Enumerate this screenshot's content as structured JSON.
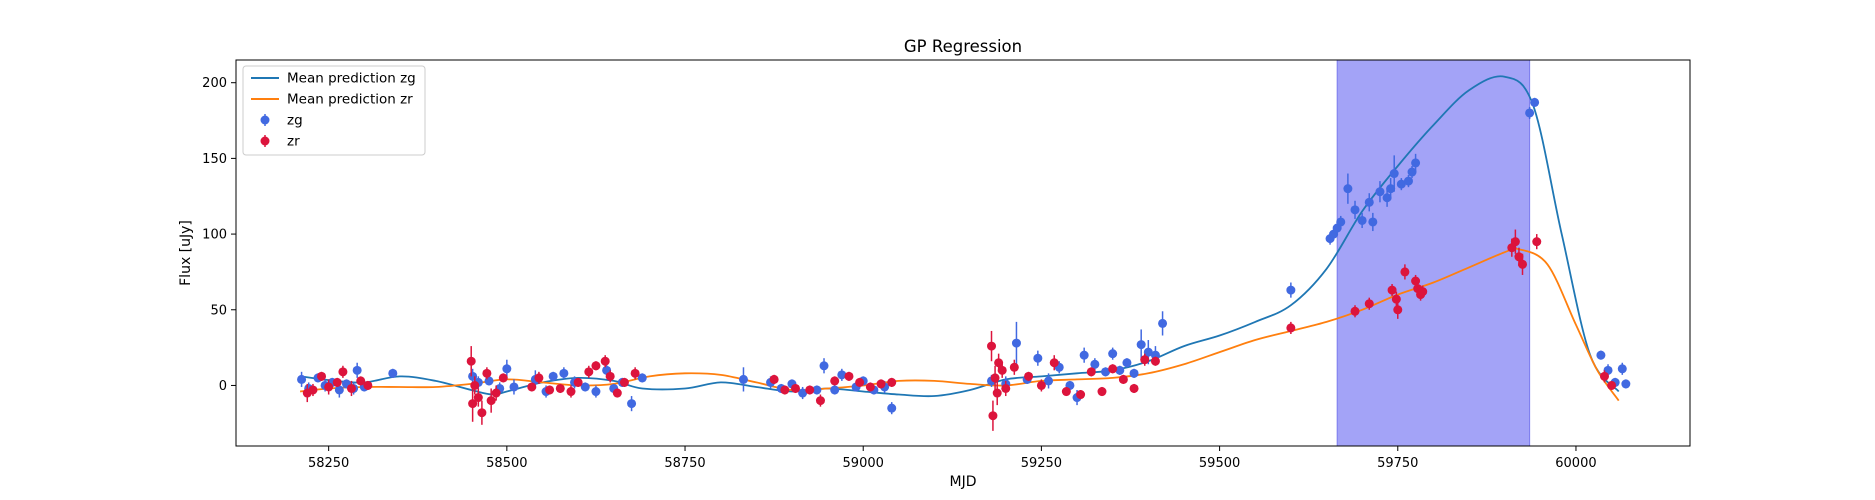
{
  "chart_data": {
    "type": "scatter",
    "title": "GP Regression",
    "xlabel": "MJD",
    "ylabel": "Flux [uJy]",
    "xlim": [
      58120,
      60160
    ],
    "ylim": [
      -40,
      215
    ],
    "xticks": [
      58250,
      58500,
      58750,
      59000,
      59250,
      59500,
      59750,
      60000
    ],
    "yticks": [
      0,
      50,
      100,
      150,
      200
    ],
    "grid": false,
    "legend_position": "top-left",
    "highlight_band": {
      "x0": 59665,
      "x1": 59935,
      "color": "#a3a3f7"
    },
    "series": [
      {
        "name": "Mean prediction zg",
        "kind": "line",
        "color": "#1f77b4",
        "points": [
          [
            58210,
            6
          ],
          [
            58260,
            3
          ],
          [
            58300,
            2
          ],
          [
            58350,
            6
          ],
          [
            58400,
            3
          ],
          [
            58450,
            -3
          ],
          [
            58480,
            -6
          ],
          [
            58500,
            -4
          ],
          [
            58550,
            2
          ],
          [
            58600,
            5
          ],
          [
            58650,
            3
          ],
          [
            58690,
            -2
          ],
          [
            58750,
            -2
          ],
          [
            58800,
            2
          ],
          [
            58850,
            -1
          ],
          [
            58900,
            -4
          ],
          [
            58950,
            -2
          ],
          [
            59000,
            -4
          ],
          [
            59050,
            -6
          ],
          [
            59100,
            -7
          ],
          [
            59150,
            -3
          ],
          [
            59200,
            4
          ],
          [
            59250,
            6
          ],
          [
            59300,
            8
          ],
          [
            59350,
            10
          ],
          [
            59400,
            16
          ],
          [
            59450,
            26
          ],
          [
            59500,
            33
          ],
          [
            59550,
            42
          ],
          [
            59600,
            53
          ],
          [
            59650,
            77
          ],
          [
            59700,
            115
          ],
          [
            59750,
            145
          ],
          [
            59800,
            172
          ],
          [
            59850,
            195
          ],
          [
            59900,
            204
          ],
          [
            59940,
            185
          ],
          [
            59980,
            100
          ],
          [
            60020,
            20
          ],
          [
            60060,
            -4
          ]
        ]
      },
      {
        "name": "Mean prediction zr",
        "kind": "line",
        "color": "#ff7f0e",
        "points": [
          [
            58210,
            -4
          ],
          [
            58250,
            -2
          ],
          [
            58300,
            -1
          ],
          [
            58350,
            -1
          ],
          [
            58400,
            -1
          ],
          [
            58450,
            1
          ],
          [
            58500,
            4
          ],
          [
            58550,
            2
          ],
          [
            58600,
            0
          ],
          [
            58650,
            1
          ],
          [
            58700,
            6
          ],
          [
            58750,
            8
          ],
          [
            58800,
            7
          ],
          [
            58850,
            2
          ],
          [
            58900,
            -3
          ],
          [
            58950,
            -2
          ],
          [
            59000,
            0
          ],
          [
            59050,
            3
          ],
          [
            59100,
            3
          ],
          [
            59150,
            1
          ],
          [
            59200,
            0
          ],
          [
            59250,
            3
          ],
          [
            59300,
            4
          ],
          [
            59350,
            5
          ],
          [
            59400,
            8
          ],
          [
            59450,
            14
          ],
          [
            59500,
            22
          ],
          [
            59550,
            30
          ],
          [
            59600,
            36
          ],
          [
            59650,
            42
          ],
          [
            59700,
            50
          ],
          [
            59750,
            60
          ],
          [
            59800,
            68
          ],
          [
            59850,
            78
          ],
          [
            59900,
            88
          ],
          [
            59920,
            90
          ],
          [
            59960,
            80
          ],
          [
            60000,
            40
          ],
          [
            60030,
            10
          ],
          [
            60060,
            -10
          ]
        ]
      },
      {
        "name": "zg",
        "kind": "errorbar",
        "color": "#4169e1",
        "points": [
          [
            58212,
            4,
            5
          ],
          [
            58222,
            -2,
            4
          ],
          [
            58235,
            5,
            3
          ],
          [
            58245,
            0,
            4
          ],
          [
            58255,
            2,
            3
          ],
          [
            58265,
            -3,
            5
          ],
          [
            58275,
            1,
            3
          ],
          [
            58285,
            -2,
            4
          ],
          [
            58290,
            10,
            5
          ],
          [
            58300,
            -1,
            3
          ],
          [
            58340,
            8,
            3
          ],
          [
            58452,
            6,
            5
          ],
          [
            58460,
            2,
            4
          ],
          [
            58475,
            3,
            3
          ],
          [
            58490,
            -2,
            4
          ],
          [
            58500,
            11,
            6
          ],
          [
            58510,
            -1,
            5
          ],
          [
            58540,
            4,
            6
          ],
          [
            58555,
            -4,
            4
          ],
          [
            58565,
            6,
            3
          ],
          [
            58580,
            8,
            4
          ],
          [
            58595,
            2,
            4
          ],
          [
            58610,
            -1,
            3
          ],
          [
            58625,
            -4,
            4
          ],
          [
            58640,
            10,
            5
          ],
          [
            58650,
            -2,
            3
          ],
          [
            58662,
            2,
            3
          ],
          [
            58675,
            -12,
            5
          ],
          [
            58690,
            5,
            3
          ],
          [
            58832,
            4,
            8
          ],
          [
            58870,
            2,
            4
          ],
          [
            58885,
            -2,
            3
          ],
          [
            58900,
            1,
            3
          ],
          [
            58915,
            -5,
            4
          ],
          [
            58935,
            -3,
            3
          ],
          [
            58945,
            13,
            5
          ],
          [
            58960,
            -3,
            3
          ],
          [
            58970,
            7,
            4
          ],
          [
            58990,
            -1,
            3
          ],
          [
            59000,
            3,
            3
          ],
          [
            59015,
            -3,
            3
          ],
          [
            59030,
            -1,
            4
          ],
          [
            59040,
            -15,
            4
          ],
          [
            59180,
            3,
            4
          ],
          [
            59200,
            1,
            5
          ],
          [
            59215,
            28,
            14
          ],
          [
            59230,
            4,
            3
          ],
          [
            59245,
            18,
            5
          ],
          [
            59260,
            3,
            5
          ],
          [
            59275,
            12,
            4
          ],
          [
            59290,
            0,
            3
          ],
          [
            59300,
            -8,
            5
          ],
          [
            59310,
            20,
            5
          ],
          [
            59325,
            14,
            4
          ],
          [
            59340,
            9,
            3
          ],
          [
            59350,
            21,
            4
          ],
          [
            59360,
            10,
            3
          ],
          [
            59370,
            15,
            3
          ],
          [
            59380,
            8,
            3
          ],
          [
            59390,
            27,
            10
          ],
          [
            59400,
            22,
            8
          ],
          [
            59410,
            20,
            6
          ],
          [
            59420,
            41,
            8
          ],
          [
            59600,
            63,
            5
          ],
          [
            59655,
            97,
            4
          ],
          [
            59660,
            100,
            4
          ],
          [
            59665,
            104,
            4
          ],
          [
            59670,
            108,
            4
          ],
          [
            59680,
            130,
            10
          ],
          [
            59690,
            116,
            6
          ],
          [
            59700,
            109,
            5
          ],
          [
            59710,
            121,
            6
          ],
          [
            59715,
            108,
            6
          ],
          [
            59725,
            128,
            7
          ],
          [
            59735,
            124,
            6
          ],
          [
            59740,
            130,
            7
          ],
          [
            59745,
            140,
            12
          ],
          [
            59755,
            133,
            4
          ],
          [
            59765,
            135,
            4
          ],
          [
            59770,
            141,
            4
          ],
          [
            59775,
            147,
            6
          ],
          [
            59935,
            180,
            4
          ],
          [
            59942,
            187,
            3
          ],
          [
            60035,
            20,
            3
          ],
          [
            60045,
            10,
            4
          ],
          [
            60055,
            2,
            3
          ],
          [
            60065,
            11,
            4
          ],
          [
            60070,
            1,
            3
          ]
        ]
      },
      {
        "name": "zr",
        "kind": "errorbar",
        "color": "#dc143c",
        "points": [
          [
            58220,
            -5,
            6
          ],
          [
            58228,
            -3,
            4
          ],
          [
            58240,
            6,
            3
          ],
          [
            58250,
            -1,
            5
          ],
          [
            58262,
            2,
            3
          ],
          [
            58270,
            9,
            4
          ],
          [
            58282,
            -2,
            5
          ],
          [
            58295,
            3,
            3
          ],
          [
            58305,
            0,
            3
          ],
          [
            58450,
            16,
            10
          ],
          [
            58452,
            -12,
            12
          ],
          [
            58455,
            0,
            6
          ],
          [
            58460,
            -8,
            6
          ],
          [
            58465,
            -18,
            8
          ],
          [
            58472,
            8,
            4
          ],
          [
            58478,
            -10,
            8
          ],
          [
            58485,
            -5,
            5
          ],
          [
            58495,
            5,
            3
          ],
          [
            58535,
            -1,
            3
          ],
          [
            58545,
            5,
            4
          ],
          [
            58560,
            -3,
            3
          ],
          [
            58575,
            -2,
            3
          ],
          [
            58590,
            -4,
            4
          ],
          [
            58600,
            2,
            3
          ],
          [
            58615,
            9,
            4
          ],
          [
            58625,
            13,
            3
          ],
          [
            58638,
            16,
            4
          ],
          [
            58645,
            6,
            4
          ],
          [
            58655,
            -5,
            3
          ],
          [
            58665,
            2,
            3
          ],
          [
            58680,
            8,
            4
          ],
          [
            58875,
            4,
            3
          ],
          [
            58890,
            -3,
            3
          ],
          [
            58905,
            -2,
            3
          ],
          [
            58925,
            -3,
            3
          ],
          [
            58940,
            -10,
            4
          ],
          [
            58960,
            3,
            3
          ],
          [
            58980,
            6,
            3
          ],
          [
            58995,
            2,
            3
          ],
          [
            59010,
            -1,
            3
          ],
          [
            59025,
            1,
            3
          ],
          [
            59040,
            2,
            3
          ],
          [
            59180,
            26,
            10
          ],
          [
            59182,
            -20,
            10
          ],
          [
            59185,
            5,
            8
          ],
          [
            59188,
            -5,
            8
          ],
          [
            59190,
            15,
            6
          ],
          [
            59195,
            10,
            5
          ],
          [
            59200,
            -2,
            5
          ],
          [
            59212,
            12,
            5
          ],
          [
            59232,
            6,
            3
          ],
          [
            59250,
            0,
            4
          ],
          [
            59268,
            15,
            5
          ],
          [
            59285,
            -4,
            3
          ],
          [
            59305,
            -6,
            3
          ],
          [
            59320,
            9,
            3
          ],
          [
            59335,
            -4,
            3
          ],
          [
            59350,
            11,
            3
          ],
          [
            59365,
            4,
            3
          ],
          [
            59380,
            -2,
            3
          ],
          [
            59395,
            17,
            4
          ],
          [
            59410,
            16,
            3
          ],
          [
            59600,
            38,
            4
          ],
          [
            59690,
            49,
            4
          ],
          [
            59710,
            54,
            4
          ],
          [
            59742,
            63,
            4
          ],
          [
            59748,
            57,
            5
          ],
          [
            59750,
            50,
            6
          ],
          [
            59760,
            75,
            5
          ],
          [
            59775,
            69,
            4
          ],
          [
            59778,
            64,
            4
          ],
          [
            59782,
            60,
            4
          ],
          [
            59785,
            62,
            4
          ],
          [
            59910,
            91,
            6
          ],
          [
            59915,
            95,
            8
          ],
          [
            59920,
            85,
            6
          ],
          [
            59925,
            80,
            7
          ],
          [
            59945,
            95,
            5
          ],
          [
            60040,
            6,
            4
          ],
          [
            60050,
            0,
            3
          ]
        ]
      }
    ]
  }
}
